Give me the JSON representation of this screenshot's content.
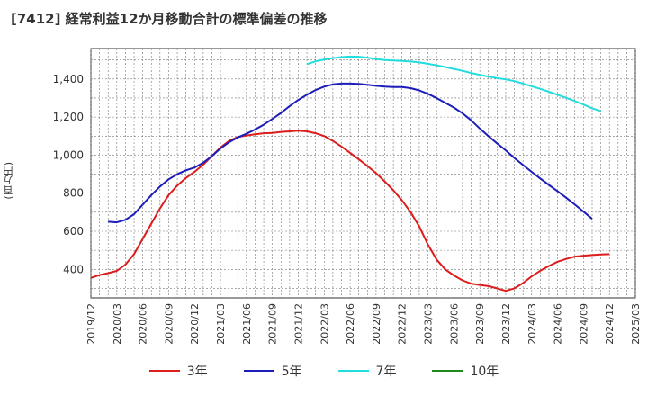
{
  "chart_data": {
    "type": "line",
    "title": "[7412]  経常利益12か月移動合計の標準偏差の推移",
    "ylabel": "(百万円)",
    "xlabel": "",
    "ylim": [
      250,
      1560
    ],
    "xlim": [
      "2019-12",
      "2025-03"
    ],
    "yticks": [
      400,
      600,
      800,
      1000,
      1200,
      1400
    ],
    "ytick_labels": [
      "400",
      "600",
      "800",
      "1,000",
      "1,200",
      "1,400"
    ],
    "xtick_labels": [
      "2019/12",
      "2020/03",
      "2020/06",
      "2020/09",
      "2020/12",
      "2021/03",
      "2021/06",
      "2021/09",
      "2021/12",
      "2022/03",
      "2022/06",
      "2022/09",
      "2022/12",
      "2023/03",
      "2023/06",
      "2023/09",
      "2023/12",
      "2024/03",
      "2024/06",
      "2024/09",
      "2024/12",
      "2025/03"
    ],
    "grid": true,
    "legend_position": "bottom",
    "series": [
      {
        "name": "3年",
        "color": "#dd1c1c",
        "points": [
          [
            "2019-12",
            355
          ],
          [
            "2020-01",
            370
          ],
          [
            "2020-02",
            380
          ],
          [
            "2020-03",
            392
          ],
          [
            "2020-04",
            425
          ],
          [
            "2020-05",
            480
          ],
          [
            "2020-06",
            560
          ],
          [
            "2020-07",
            640
          ],
          [
            "2020-08",
            720
          ],
          [
            "2020-09",
            790
          ],
          [
            "2020-10",
            840
          ],
          [
            "2020-11",
            880
          ],
          [
            "2020-12",
            912
          ],
          [
            "2021-01",
            950
          ],
          [
            "2021-02",
            995
          ],
          [
            "2021-03",
            1040
          ],
          [
            "2021-04",
            1075
          ],
          [
            "2021-05",
            1095
          ],
          [
            "2021-06",
            1103
          ],
          [
            "2021-07",
            1110
          ],
          [
            "2021-08",
            1115
          ],
          [
            "2021-09",
            1117
          ],
          [
            "2021-10",
            1122
          ],
          [
            "2021-11",
            1125
          ],
          [
            "2021-12",
            1128
          ],
          [
            "2022-01",
            1125
          ],
          [
            "2022-02",
            1115
          ],
          [
            "2022-03",
            1100
          ],
          [
            "2022-04",
            1075
          ],
          [
            "2022-05",
            1045
          ],
          [
            "2022-06",
            1012
          ],
          [
            "2022-07",
            978
          ],
          [
            "2022-08",
            943
          ],
          [
            "2022-09",
            905
          ],
          [
            "2022-10",
            862
          ],
          [
            "2022-11",
            815
          ],
          [
            "2022-12",
            762
          ],
          [
            "2023-01",
            700
          ],
          [
            "2023-02",
            625
          ],
          [
            "2023-03",
            530
          ],
          [
            "2023-04",
            452
          ],
          [
            "2023-05",
            400
          ],
          [
            "2023-06",
            368
          ],
          [
            "2023-07",
            342
          ],
          [
            "2023-08",
            325
          ],
          [
            "2023-09",
            318
          ],
          [
            "2023-10",
            312
          ],
          [
            "2023-11",
            300
          ],
          [
            "2023-12",
            287
          ],
          [
            "2024-01",
            300
          ],
          [
            "2024-02",
            328
          ],
          [
            "2024-03",
            363
          ],
          [
            "2024-04",
            393
          ],
          [
            "2024-05",
            418
          ],
          [
            "2024-06",
            440
          ],
          [
            "2024-07",
            455
          ],
          [
            "2024-08",
            467
          ],
          [
            "2024-09",
            472
          ],
          [
            "2024-10",
            475
          ],
          [
            "2024-11",
            478
          ],
          [
            "2024-12",
            480
          ]
        ]
      },
      {
        "name": "5年",
        "color": "#1c1cbb",
        "points": [
          [
            "2020-02",
            650
          ],
          [
            "2020-03",
            647
          ],
          [
            "2020-04",
            660
          ],
          [
            "2020-05",
            690
          ],
          [
            "2020-06",
            740
          ],
          [
            "2020-07",
            790
          ],
          [
            "2020-08",
            835
          ],
          [
            "2020-09",
            873
          ],
          [
            "2020-10",
            900
          ],
          [
            "2020-11",
            920
          ],
          [
            "2020-12",
            935
          ],
          [
            "2021-01",
            960
          ],
          [
            "2021-02",
            995
          ],
          [
            "2021-03",
            1035
          ],
          [
            "2021-04",
            1068
          ],
          [
            "2021-05",
            1093
          ],
          [
            "2021-06",
            1112
          ],
          [
            "2021-07",
            1135
          ],
          [
            "2021-08",
            1160
          ],
          [
            "2021-09",
            1190
          ],
          [
            "2021-10",
            1222
          ],
          [
            "2021-11",
            1258
          ],
          [
            "2021-12",
            1290
          ],
          [
            "2022-01",
            1318
          ],
          [
            "2022-02",
            1342
          ],
          [
            "2022-03",
            1360
          ],
          [
            "2022-04",
            1372
          ],
          [
            "2022-05",
            1376
          ],
          [
            "2022-06",
            1376
          ],
          [
            "2022-07",
            1374
          ],
          [
            "2022-08",
            1370
          ],
          [
            "2022-09",
            1364
          ],
          [
            "2022-10",
            1360
          ],
          [
            "2022-11",
            1358
          ],
          [
            "2022-12",
            1358
          ],
          [
            "2023-01",
            1352
          ],
          [
            "2023-02",
            1340
          ],
          [
            "2023-03",
            1322
          ],
          [
            "2023-04",
            1300
          ],
          [
            "2023-05",
            1275
          ],
          [
            "2023-06",
            1250
          ],
          [
            "2023-07",
            1220
          ],
          [
            "2023-08",
            1183
          ],
          [
            "2023-09",
            1140
          ],
          [
            "2023-10",
            1100
          ],
          [
            "2023-11",
            1062
          ],
          [
            "2023-12",
            1025
          ],
          [
            "2024-01",
            985
          ],
          [
            "2024-02",
            948
          ],
          [
            "2024-03",
            912
          ],
          [
            "2024-04",
            877
          ],
          [
            "2024-05",
            843
          ],
          [
            "2024-06",
            810
          ],
          [
            "2024-07",
            776
          ],
          [
            "2024-08",
            740
          ],
          [
            "2024-09",
            703
          ],
          [
            "2024-10",
            665
          ]
        ]
      },
      {
        "name": "7年",
        "color": "#22dddd",
        "points": [
          [
            "2022-01",
            1478
          ],
          [
            "2022-02",
            1493
          ],
          [
            "2022-03",
            1503
          ],
          [
            "2022-04",
            1510
          ],
          [
            "2022-05",
            1515
          ],
          [
            "2022-06",
            1518
          ],
          [
            "2022-07",
            1517
          ],
          [
            "2022-08",
            1512
          ],
          [
            "2022-09",
            1505
          ],
          [
            "2022-10",
            1500
          ],
          [
            "2022-11",
            1497
          ],
          [
            "2022-12",
            1495
          ],
          [
            "2023-01",
            1492
          ],
          [
            "2023-02",
            1487
          ],
          [
            "2023-03",
            1480
          ],
          [
            "2023-04",
            1472
          ],
          [
            "2023-05",
            1463
          ],
          [
            "2023-06",
            1453
          ],
          [
            "2023-07",
            1443
          ],
          [
            "2023-08",
            1432
          ],
          [
            "2023-09",
            1422
          ],
          [
            "2023-10",
            1413
          ],
          [
            "2023-11",
            1405
          ],
          [
            "2023-12",
            1398
          ],
          [
            "2024-01",
            1389
          ],
          [
            "2024-02",
            1376
          ],
          [
            "2024-03",
            1362
          ],
          [
            "2024-04",
            1348
          ],
          [
            "2024-05",
            1333
          ],
          [
            "2024-06",
            1317
          ],
          [
            "2024-07",
            1301
          ],
          [
            "2024-08",
            1284
          ],
          [
            "2024-09",
            1266
          ],
          [
            "2024-10",
            1246
          ],
          [
            "2024-11",
            1232
          ]
        ]
      },
      {
        "name": "10年",
        "color": "#1e8a1e",
        "points": []
      }
    ]
  }
}
